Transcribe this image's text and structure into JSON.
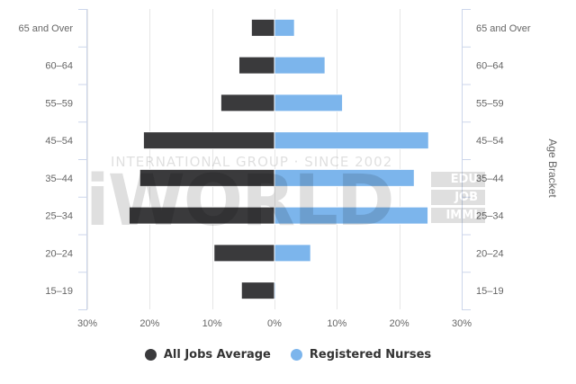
{
  "chart_data": {
    "type": "bar",
    "orientation": "horizontal",
    "layout": "population-pyramid",
    "categories": [
      "65 and Over",
      "60-64",
      "55-59",
      "45-54",
      "35-44",
      "25-34",
      "20-24",
      "15-19"
    ],
    "category_labels_left": [
      "65 and Over",
      "60–64",
      "55–59",
      "45–54",
      "35–44",
      "25–34",
      "20–24",
      "15–19"
    ],
    "category_labels_right": [
      "65 and Over",
      "60–64",
      "55–59",
      "45–54",
      "35–44",
      "25–34",
      "20–24",
      "15–19"
    ],
    "series": [
      {
        "name": "All Jobs Average",
        "color": "#3a3a3c",
        "side": "left",
        "values": [
          3.7,
          5.7,
          8.6,
          21.0,
          21.6,
          23.3,
          9.7,
          5.3
        ]
      },
      {
        "name": "Registered Nurses",
        "color": "#7cb5ec",
        "side": "right",
        "values": [
          3.2,
          8.1,
          10.9,
          24.7,
          22.4,
          24.6,
          5.8,
          0.2
        ]
      }
    ],
    "xlim": [
      -30,
      30
    ],
    "x_ticks": [
      -30,
      -20,
      -10,
      0,
      10,
      20,
      30
    ],
    "x_tick_labels": [
      "30%",
      "20%",
      "10%",
      "0%",
      "10%",
      "20%",
      "30%"
    ],
    "ylabel_right": "Age Bracket",
    "grid": true,
    "legend": {
      "position": "bottom"
    }
  },
  "legend": {
    "items": [
      {
        "label": "All Jobs Average",
        "color": "#3a3a3c"
      },
      {
        "label": "Registered Nurses",
        "color": "#7cb5ec"
      }
    ]
  },
  "watermark": {
    "main": "iWORLD",
    "sub": "INTERNATIONAL GROUP · SINCE 2002",
    "tags": [
      "EDU",
      "JOB",
      "IMMI"
    ]
  }
}
